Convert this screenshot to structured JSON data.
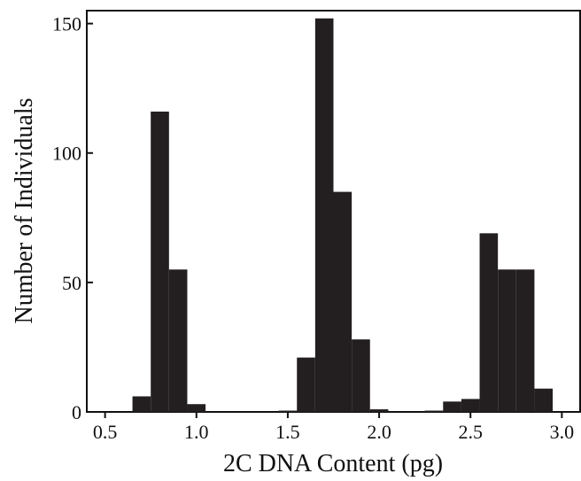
{
  "chart_data": {
    "type": "bar",
    "title": "",
    "xlabel": "2C DNA Content (pg)",
    "ylabel": "Number of Individuals",
    "xlim": [
      0.4,
      3.1
    ],
    "ylim": [
      0,
      155
    ],
    "xticks": [
      0.5,
      1.0,
      1.5,
      2.0,
      2.5,
      3.0
    ],
    "xtick_labels": [
      "0.5",
      "1.0",
      "1.5",
      "2.0",
      "2.5",
      "3.0"
    ],
    "yticks": [
      0,
      50,
      100,
      150
    ],
    "ytick_labels": [
      "0",
      "50",
      "100",
      "150"
    ],
    "bin_width": 0.1,
    "bins": [
      {
        "x": 0.7,
        "value": 6
      },
      {
        "x": 0.8,
        "value": 116
      },
      {
        "x": 0.9,
        "value": 55
      },
      {
        "x": 1.0,
        "value": 3
      },
      {
        "x": 1.5,
        "value": 0.5
      },
      {
        "x": 1.6,
        "value": 21
      },
      {
        "x": 1.7,
        "value": 152
      },
      {
        "x": 1.8,
        "value": 85
      },
      {
        "x": 1.9,
        "value": 28
      },
      {
        "x": 2.0,
        "value": 1
      },
      {
        "x": 2.3,
        "value": 0.5
      },
      {
        "x": 2.4,
        "value": 4
      },
      {
        "x": 2.5,
        "value": 5
      },
      {
        "x": 2.6,
        "value": 69
      },
      {
        "x": 2.7,
        "value": 55
      },
      {
        "x": 2.8,
        "value": 55
      },
      {
        "x": 2.9,
        "value": 9
      }
    ],
    "bar_color": "#231f20",
    "grid": false,
    "legend": "none"
  }
}
